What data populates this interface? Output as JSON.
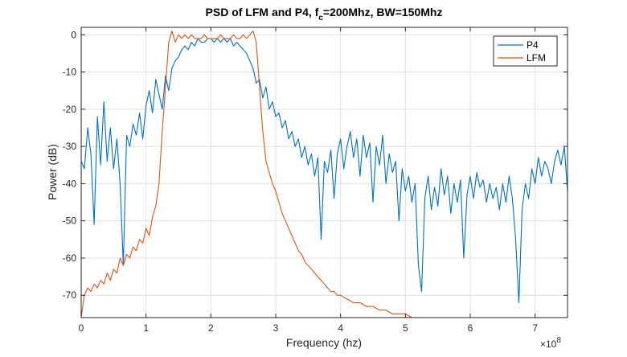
{
  "chart_data": {
    "type": "line",
    "title": "PSD of LFM and P4, f",
    "title_sub": "c",
    "title_rest": "=200Mhz, BW=150Mhz",
    "xlabel": "Frequency (hz)",
    "ylabel": "Power (dB)",
    "x_exponent_base": "×10",
    "x_exponent_power": "8",
    "xlim": [
      0,
      7.5
    ],
    "ylim": [
      -76,
      2
    ],
    "x_ticks": [
      "0",
      "1",
      "2",
      "3",
      "4",
      "5",
      "6",
      "7"
    ],
    "x_tick_values": [
      0,
      1,
      2,
      3,
      4,
      5,
      6,
      7
    ],
    "y_ticks": [
      "0",
      "-10",
      "-20",
      "-30",
      "-40",
      "-50",
      "-60",
      "-70"
    ],
    "y_tick_values": [
      0,
      -10,
      -20,
      -30,
      -40,
      -50,
      -60,
      -70
    ],
    "grid": true,
    "legend_position": "top-right",
    "series": [
      {
        "name": "P4",
        "color": "#0072BD",
        "points": [
          [
            0.0,
            -34
          ],
          [
            0.05,
            -36
          ],
          [
            0.1,
            -25
          ],
          [
            0.15,
            -32
          ],
          [
            0.2,
            -51
          ],
          [
            0.25,
            -22
          ],
          [
            0.3,
            -35
          ],
          [
            0.35,
            -18
          ],
          [
            0.4,
            -34
          ],
          [
            0.45,
            -25
          ],
          [
            0.5,
            -36
          ],
          [
            0.55,
            -28
          ],
          [
            0.6,
            -40
          ],
          [
            0.65,
            -62
          ],
          [
            0.7,
            -27
          ],
          [
            0.75,
            -30
          ],
          [
            0.8,
            -24
          ],
          [
            0.85,
            -27
          ],
          [
            0.9,
            -21
          ],
          [
            0.95,
            -28
          ],
          [
            1.0,
            -19
          ],
          [
            1.05,
            -15
          ],
          [
            1.1,
            -21
          ],
          [
            1.15,
            -12
          ],
          [
            1.2,
            -16
          ],
          [
            1.25,
            -20
          ],
          [
            1.3,
            -11
          ],
          [
            1.35,
            -15
          ],
          [
            1.4,
            -9
          ],
          [
            1.45,
            -7
          ],
          [
            1.5,
            -6
          ],
          [
            1.55,
            -4
          ],
          [
            1.6,
            -3
          ],
          [
            1.65,
            -4
          ],
          [
            1.7,
            -2
          ],
          [
            1.75,
            -3
          ],
          [
            1.8,
            -1
          ],
          [
            1.85,
            -2
          ],
          [
            1.9,
            -2
          ],
          [
            1.95,
            -1
          ],
          [
            2.0,
            -1
          ],
          [
            2.05,
            -2
          ],
          [
            2.1,
            -1
          ],
          [
            2.15,
            -2
          ],
          [
            2.2,
            -1
          ],
          [
            2.25,
            -2
          ],
          [
            2.3,
            -1
          ],
          [
            2.35,
            -3
          ],
          [
            2.4,
            -2
          ],
          [
            2.45,
            -3
          ],
          [
            2.5,
            -4
          ],
          [
            2.55,
            -5
          ],
          [
            2.6,
            -7
          ],
          [
            2.65,
            -9
          ],
          [
            2.7,
            -13
          ],
          [
            2.75,
            -12
          ],
          [
            2.8,
            -17
          ],
          [
            2.85,
            -14
          ],
          [
            2.9,
            -20
          ],
          [
            2.95,
            -18
          ],
          [
            3.0,
            -22
          ],
          [
            3.05,
            -21
          ],
          [
            3.1,
            -25
          ],
          [
            3.15,
            -23
          ],
          [
            3.2,
            -28
          ],
          [
            3.25,
            -26
          ],
          [
            3.3,
            -30
          ],
          [
            3.35,
            -28
          ],
          [
            3.4,
            -33
          ],
          [
            3.45,
            -30
          ],
          [
            3.5,
            -35
          ],
          [
            3.55,
            -32
          ],
          [
            3.6,
            -38
          ],
          [
            3.65,
            -33
          ],
          [
            3.7,
            -55
          ],
          [
            3.75,
            -34
          ],
          [
            3.8,
            -37
          ],
          [
            3.85,
            -31
          ],
          [
            3.9,
            -44
          ],
          [
            3.95,
            -32
          ],
          [
            4.0,
            -28
          ],
          [
            4.05,
            -36
          ],
          [
            4.1,
            -30
          ],
          [
            4.15,
            -26
          ],
          [
            4.2,
            -33
          ],
          [
            4.25,
            -28
          ],
          [
            4.3,
            -38
          ],
          [
            4.35,
            -27
          ],
          [
            4.4,
            -33
          ],
          [
            4.45,
            -29
          ],
          [
            4.5,
            -45
          ],
          [
            4.55,
            -30
          ],
          [
            4.6,
            -35
          ],
          [
            4.65,
            -27
          ],
          [
            4.7,
            -40
          ],
          [
            4.75,
            -32
          ],
          [
            4.8,
            -37
          ],
          [
            4.85,
            -34
          ],
          [
            4.9,
            -50
          ],
          [
            4.95,
            -36
          ],
          [
            5.0,
            -42
          ],
          [
            5.05,
            -38
          ],
          [
            5.1,
            -45
          ],
          [
            5.15,
            -40
          ],
          [
            5.2,
            -62
          ],
          [
            5.25,
            -69
          ],
          [
            5.3,
            -44
          ],
          [
            5.35,
            -38
          ],
          [
            5.4,
            -47
          ],
          [
            5.45,
            -41
          ],
          [
            5.5,
            -46
          ],
          [
            5.55,
            -36
          ],
          [
            5.6,
            -43
          ],
          [
            5.65,
            -38
          ],
          [
            5.7,
            -48
          ],
          [
            5.75,
            -40
          ],
          [
            5.8,
            -45
          ],
          [
            5.85,
            -39
          ],
          [
            5.9,
            -60
          ],
          [
            5.95,
            -43
          ],
          [
            6.0,
            -38
          ],
          [
            6.05,
            -44
          ],
          [
            6.1,
            -37
          ],
          [
            6.15,
            -41
          ],
          [
            6.2,
            -39
          ],
          [
            6.25,
            -45
          ],
          [
            6.3,
            -40
          ],
          [
            6.35,
            -44
          ],
          [
            6.4,
            -41
          ],
          [
            6.45,
            -47
          ],
          [
            6.5,
            -40
          ],
          [
            6.55,
            -45
          ],
          [
            6.6,
            -38
          ],
          [
            6.65,
            -44
          ],
          [
            6.7,
            -55
          ],
          [
            6.75,
            -72
          ],
          [
            6.8,
            -47
          ],
          [
            6.85,
            -40
          ],
          [
            6.9,
            -44
          ],
          [
            6.95,
            -36
          ],
          [
            7.0,
            -40
          ],
          [
            7.05,
            -33
          ],
          [
            7.1,
            -38
          ],
          [
            7.15,
            -34
          ],
          [
            7.2,
            -36
          ],
          [
            7.25,
            -40
          ],
          [
            7.3,
            -34
          ],
          [
            7.35,
            -31
          ],
          [
            7.4,
            -35
          ],
          [
            7.45,
            -30
          ],
          [
            7.5,
            -42
          ]
        ]
      },
      {
        "name": "LFM",
        "color": "#D95319",
        "points": [
          [
            0.0,
            -76
          ],
          [
            0.05,
            -70
          ],
          [
            0.1,
            -68
          ],
          [
            0.15,
            -69
          ],
          [
            0.2,
            -67
          ],
          [
            0.25,
            -68
          ],
          [
            0.3,
            -66
          ],
          [
            0.35,
            -67
          ],
          [
            0.4,
            -64
          ],
          [
            0.45,
            -66
          ],
          [
            0.5,
            -63
          ],
          [
            0.55,
            -64
          ],
          [
            0.6,
            -60
          ],
          [
            0.65,
            -62
          ],
          [
            0.7,
            -59
          ],
          [
            0.75,
            -60
          ],
          [
            0.8,
            -57
          ],
          [
            0.85,
            -58
          ],
          [
            0.9,
            -55
          ],
          [
            0.95,
            -56
          ],
          [
            1.0,
            -52
          ],
          [
            1.05,
            -54
          ],
          [
            1.1,
            -49
          ],
          [
            1.15,
            -46
          ],
          [
            1.2,
            -40
          ],
          [
            1.25,
            -26
          ],
          [
            1.3,
            -14
          ],
          [
            1.35,
            -2
          ],
          [
            1.4,
            1
          ],
          [
            1.45,
            -2
          ],
          [
            1.5,
            0
          ],
          [
            1.55,
            -1
          ],
          [
            1.6,
            0
          ],
          [
            1.65,
            -1
          ],
          [
            1.7,
            0
          ],
          [
            1.75,
            -1
          ],
          [
            1.8,
            -1
          ],
          [
            1.85,
            -1
          ],
          [
            1.9,
            0
          ],
          [
            1.95,
            -1
          ],
          [
            2.0,
            -1
          ],
          [
            2.05,
            -1
          ],
          [
            2.1,
            -1
          ],
          [
            2.15,
            0
          ],
          [
            2.2,
            -1
          ],
          [
            2.25,
            -1
          ],
          [
            2.3,
            -1
          ],
          [
            2.35,
            0
          ],
          [
            2.4,
            -1
          ],
          [
            2.45,
            -1
          ],
          [
            2.5,
            0
          ],
          [
            2.55,
            -1
          ],
          [
            2.6,
            0
          ],
          [
            2.65,
            1
          ],
          [
            2.7,
            -2
          ],
          [
            2.75,
            -14
          ],
          [
            2.8,
            -26
          ],
          [
            2.85,
            -34
          ],
          [
            2.9,
            -37
          ],
          [
            2.95,
            -40
          ],
          [
            3.0,
            -42
          ],
          [
            3.05,
            -45
          ],
          [
            3.1,
            -48
          ],
          [
            3.15,
            -50
          ],
          [
            3.2,
            -52
          ],
          [
            3.25,
            -54
          ],
          [
            3.3,
            -56
          ],
          [
            3.35,
            -58
          ],
          [
            3.4,
            -59
          ],
          [
            3.45,
            -61
          ],
          [
            3.5,
            -62
          ],
          [
            3.55,
            -63
          ],
          [
            3.6,
            -64
          ],
          [
            3.65,
            -65
          ],
          [
            3.7,
            -66
          ],
          [
            3.75,
            -67
          ],
          [
            3.8,
            -68
          ],
          [
            3.85,
            -69
          ],
          [
            3.9,
            -69
          ],
          [
            3.95,
            -70
          ],
          [
            4.0,
            -70
          ],
          [
            4.1,
            -71
          ],
          [
            4.2,
            -72
          ],
          [
            4.3,
            -72
          ],
          [
            4.4,
            -73
          ],
          [
            4.5,
            -73
          ],
          [
            4.6,
            -74
          ],
          [
            4.7,
            -74
          ],
          [
            4.8,
            -75
          ],
          [
            4.9,
            -75
          ],
          [
            5.0,
            -75
          ],
          [
            5.1,
            -76
          ],
          [
            5.2,
            -76
          ],
          [
            5.3,
            -76
          ]
        ]
      }
    ]
  }
}
